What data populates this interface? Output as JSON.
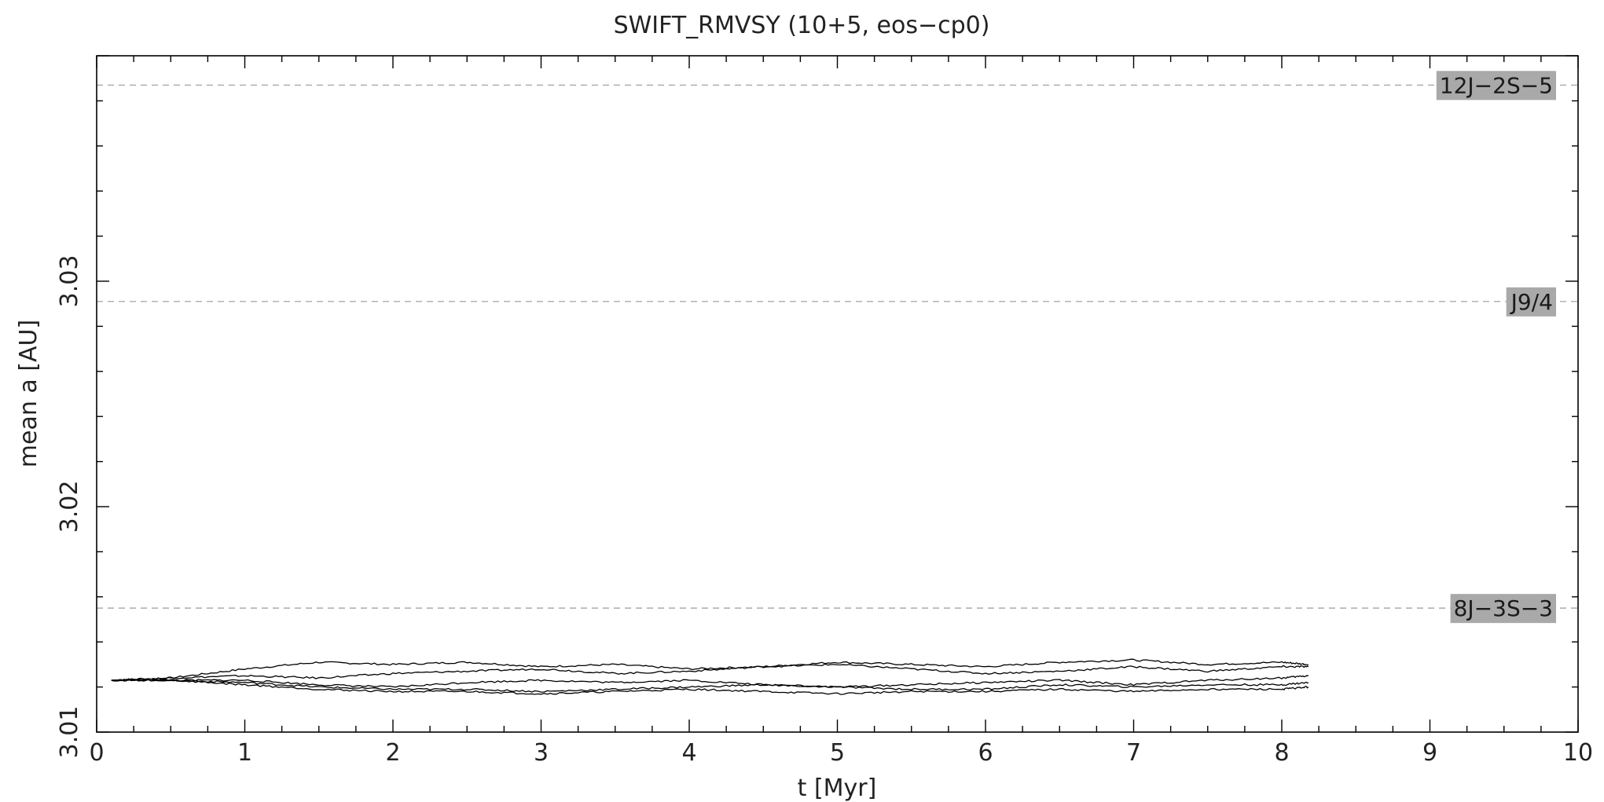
{
  "chart_data": {
    "type": "line",
    "title": "SWIFT_RMVSY (10+5, eos−cp0)",
    "xlabel": "t [Myr]",
    "ylabel": "mean a [AU]",
    "xlim": [
      0,
      10
    ],
    "ylim": [
      3.01,
      3.04
    ],
    "x_ticks": [
      0,
      1,
      2,
      3,
      4,
      5,
      6,
      7,
      8,
      9,
      10
    ],
    "x_tick_labels": [
      "0",
      "1",
      "2",
      "3",
      "4",
      "5",
      "6",
      "7",
      "8",
      "9",
      "10"
    ],
    "y_ticks": [
      3.01,
      3.02,
      3.03
    ],
    "y_tick_labels": [
      "3.01",
      "3.02",
      "3.03"
    ],
    "grid": false,
    "resonances": [
      {
        "label": "12J−2S−5",
        "a": 3.0387
      },
      {
        "label": "J9/4",
        "a": 3.0291
      },
      {
        "label": "8J−3S−3",
        "a": 3.0155
      }
    ],
    "series": [
      {
        "x": [
          0.1,
          0.5,
          1.0,
          1.5,
          2.0,
          2.5,
          3.0,
          3.5,
          4.0,
          4.5,
          5.0,
          5.5,
          6.0,
          6.5,
          7.0,
          7.5,
          8.0,
          8.18
        ],
        "values": [
          3.0123,
          3.0124,
          3.0128,
          3.0131,
          3.013,
          3.0131,
          3.0129,
          3.013,
          3.0128,
          3.0129,
          3.0131,
          3.013,
          3.0129,
          3.0131,
          3.0132,
          3.013,
          3.0131,
          3.013
        ]
      },
      {
        "x": [
          0.1,
          0.5,
          1.0,
          1.5,
          2.0,
          2.5,
          3.0,
          3.5,
          4.0,
          4.5,
          5.0,
          5.5,
          6.0,
          6.5,
          7.0,
          7.5,
          8.0,
          8.18
        ],
        "values": [
          3.0123,
          3.0124,
          3.0125,
          3.0124,
          3.0126,
          3.0127,
          3.0128,
          3.0126,
          3.0127,
          3.0129,
          3.013,
          3.0128,
          3.0126,
          3.0127,
          3.0129,
          3.0127,
          3.0129,
          3.0129
        ]
      },
      {
        "x": [
          0.1,
          0.5,
          1.0,
          1.5,
          2.0,
          2.5,
          3.0,
          3.5,
          4.0,
          4.5,
          5.0,
          5.5,
          6.0,
          6.5,
          7.0,
          7.5,
          8.0,
          8.18
        ],
        "values": [
          3.0123,
          3.0123,
          3.0123,
          3.0121,
          3.012,
          3.0122,
          3.0123,
          3.0122,
          3.0123,
          3.0121,
          3.012,
          3.0121,
          3.0122,
          3.0123,
          3.0121,
          3.0123,
          3.0124,
          3.0125
        ]
      },
      {
        "x": [
          0.1,
          0.5,
          1.0,
          1.5,
          2.0,
          2.5,
          3.0,
          3.5,
          4.0,
          4.5,
          5.0,
          5.5,
          6.0,
          6.5,
          7.0,
          7.5,
          8.0,
          8.18
        ],
        "values": [
          3.0123,
          3.0123,
          3.0122,
          3.012,
          3.0119,
          3.0119,
          3.0118,
          3.0119,
          3.012,
          3.0121,
          3.012,
          3.0119,
          3.0119,
          3.0121,
          3.012,
          3.0121,
          3.0121,
          3.0122
        ]
      },
      {
        "x": [
          0.1,
          0.5,
          1.0,
          1.5,
          2.0,
          2.5,
          3.0,
          3.5,
          4.0,
          4.5,
          5.0,
          5.5,
          6.0,
          6.5,
          7.0,
          7.5,
          8.0,
          8.18
        ],
        "values": [
          3.0123,
          3.0123,
          3.0121,
          3.0119,
          3.0118,
          3.0118,
          3.0117,
          3.0118,
          3.0119,
          3.0118,
          3.0117,
          3.0118,
          3.0118,
          3.0119,
          3.0118,
          3.0119,
          3.0119,
          3.012
        ]
      }
    ]
  }
}
